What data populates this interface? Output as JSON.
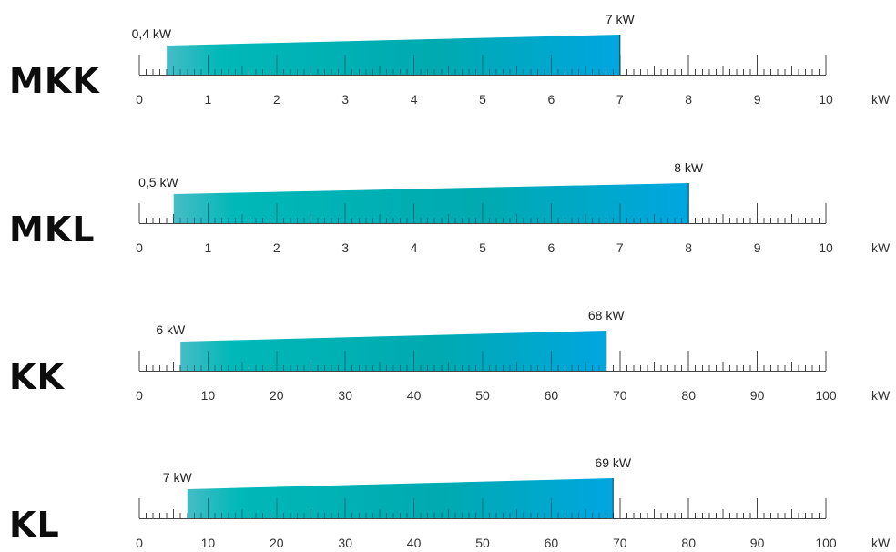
{
  "chart_data": [
    {
      "type": "bar",
      "model": "MKK",
      "unit": "kW",
      "xlim": [
        0,
        10
      ],
      "ticks": [
        "0",
        "1",
        "2",
        "3",
        "4",
        "5",
        "6",
        "7",
        "8",
        "9",
        "10"
      ],
      "range": {
        "min": 0.4,
        "max": 7
      },
      "min_label": "0,4 kW",
      "max_label": "7 kW"
    },
    {
      "type": "bar",
      "model": "MKL",
      "unit": "kW",
      "xlim": [
        0,
        10
      ],
      "ticks": [
        "0",
        "1",
        "2",
        "3",
        "4",
        "5",
        "6",
        "7",
        "8",
        "9",
        "10"
      ],
      "range": {
        "min": 0.5,
        "max": 8
      },
      "min_label": "0,5 kW",
      "max_label": "8 kW"
    },
    {
      "type": "bar",
      "model": "KK",
      "unit": "kW",
      "xlim": [
        0,
        100
      ],
      "ticks": [
        "0",
        "10",
        "20",
        "30",
        "40",
        "50",
        "60",
        "70",
        "80",
        "90",
        "100"
      ],
      "range": {
        "min": 6,
        "max": 68
      },
      "min_label": "6 kW",
      "max_label": "68 kW"
    },
    {
      "type": "bar",
      "model": "KL",
      "unit": "kW",
      "xlim": [
        0,
        100
      ],
      "ticks": [
        "0",
        "10",
        "20",
        "30",
        "40",
        "50",
        "60",
        "70",
        "80",
        "90",
        "100"
      ],
      "range": {
        "min": 7,
        "max": 69
      },
      "min_label": "7 kW",
      "max_label": "69 kW"
    }
  ],
  "colors": {
    "bar_start": "#46bcc6",
    "bar_mid": "#00b0ae",
    "bar_end": "#00a6e0",
    "axis": "#444444",
    "model_label": "#0d0d0d"
  }
}
